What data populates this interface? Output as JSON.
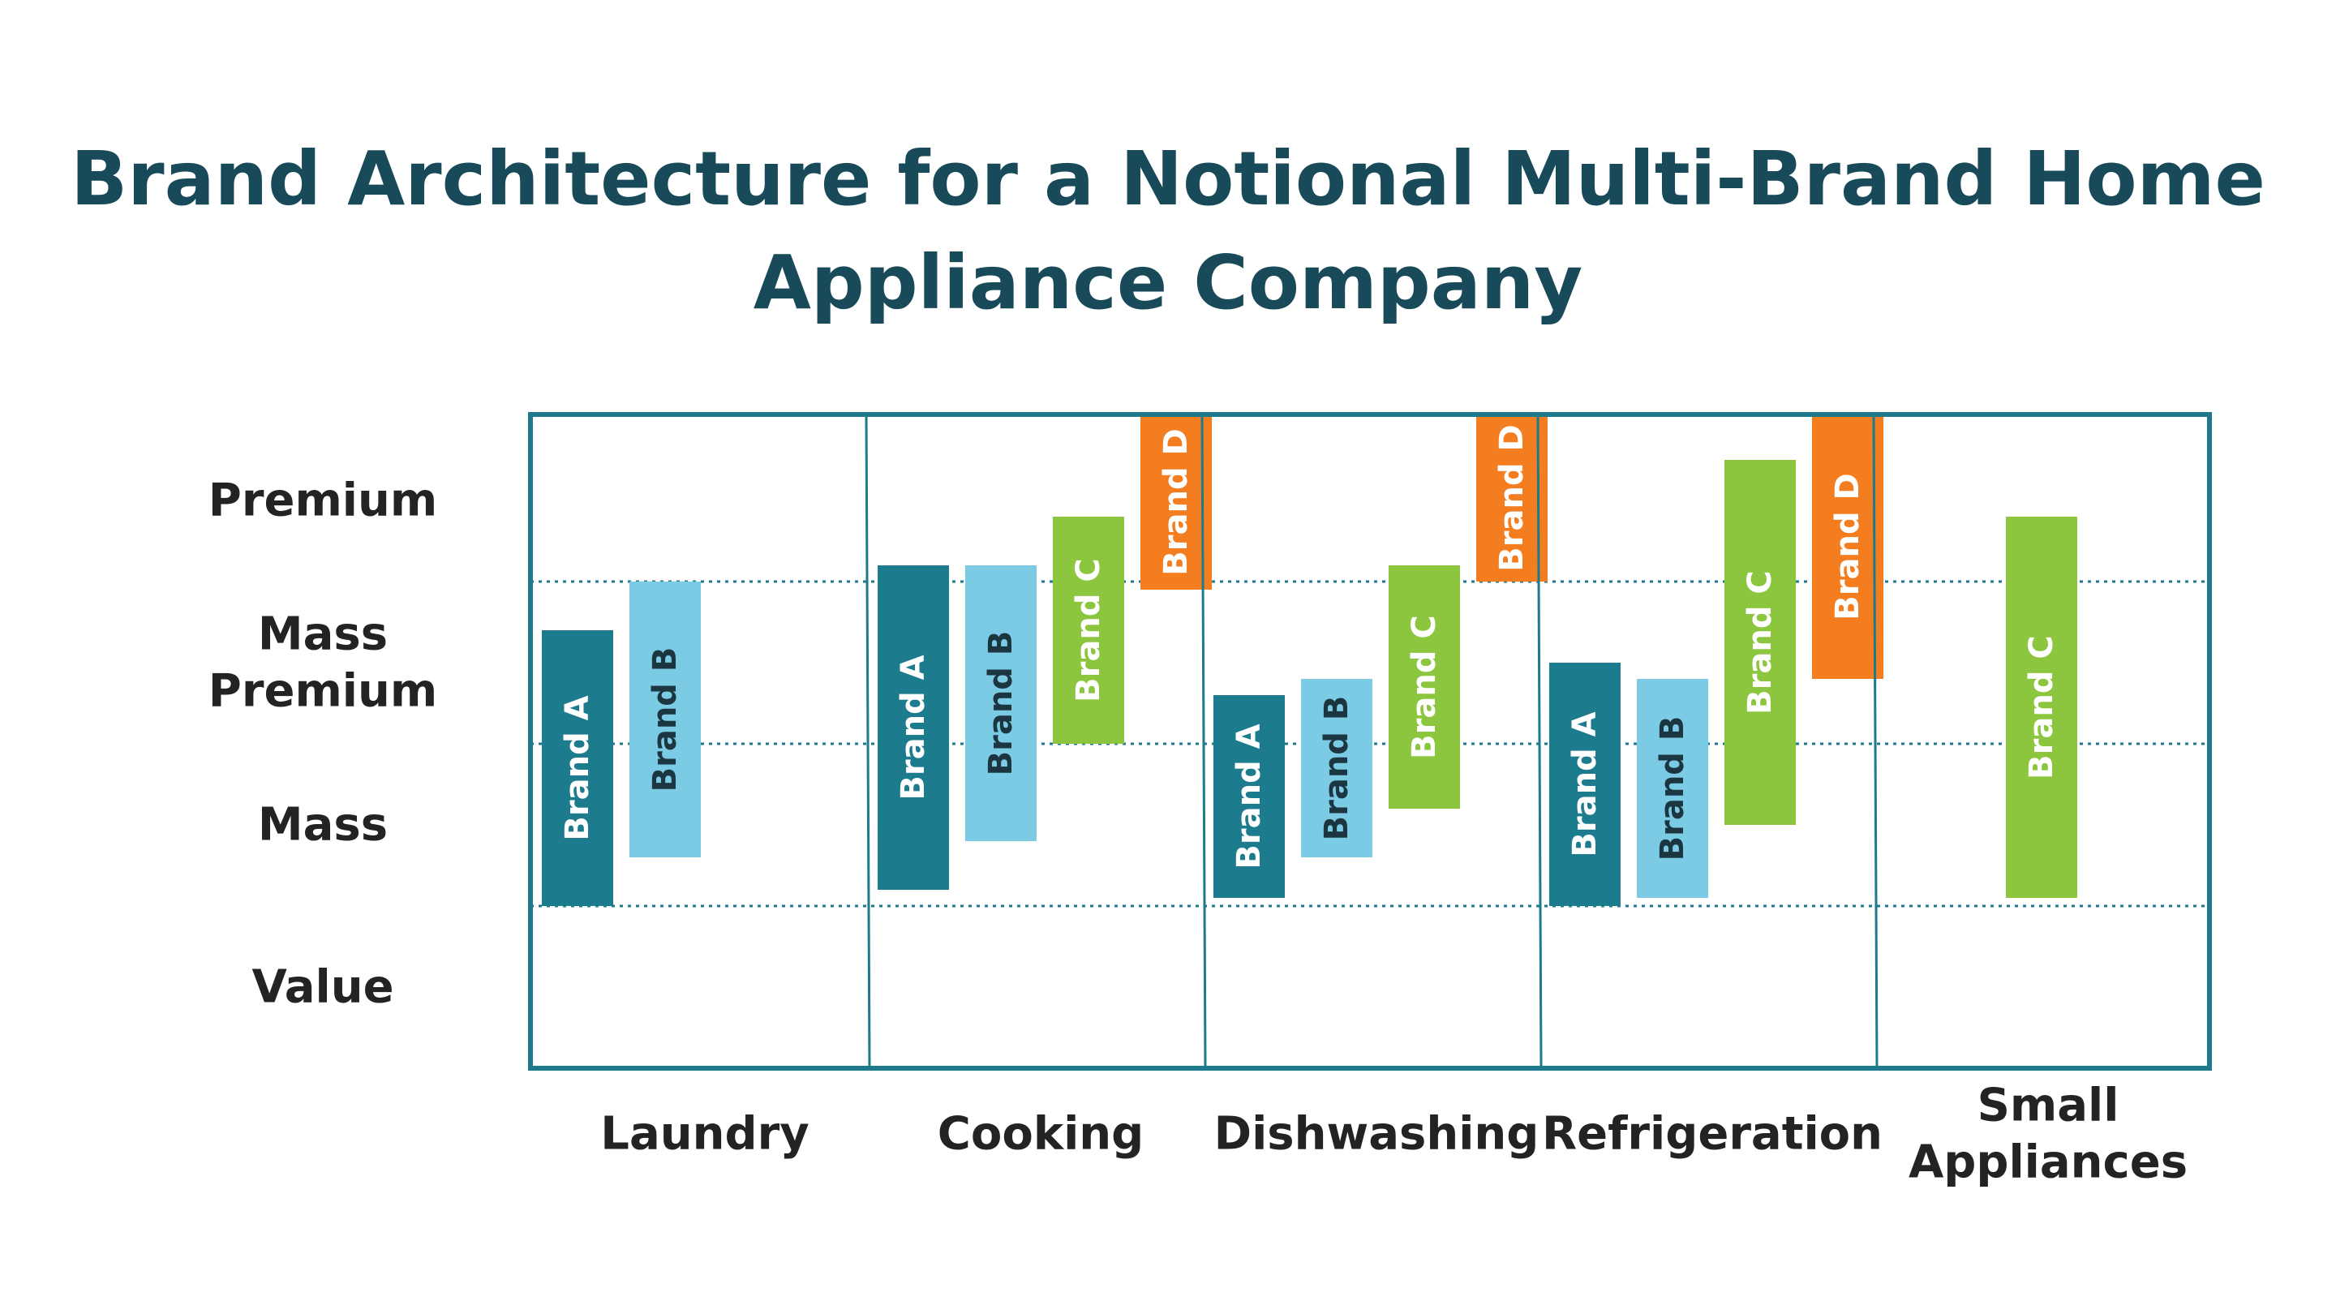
{
  "chart_data": {
    "type": "bar",
    "subtype": "floating-range",
    "title_lines": [
      "Brand Architecture for a Notional Multi-Brand Home",
      "Appliance Company"
    ],
    "y_tiers": [
      "Premium",
      "Mass Premium",
      "Mass",
      "Value"
    ],
    "y_tier_lines": [
      [
        "Premium"
      ],
      [
        "Mass",
        "Premium"
      ],
      [
        "Mass"
      ],
      [
        "Value"
      ]
    ],
    "categories": [
      "Laundry",
      "Cooking",
      "Dishwashing",
      "Refrigeration",
      "Small Appliances"
    ],
    "category_lines": [
      [
        "Laundry"
      ],
      [
        "Cooking"
      ],
      [
        "Dishwashing"
      ],
      [
        "Refrigeration"
      ],
      [
        "Small",
        "Appliances"
      ]
    ],
    "ylim": [
      0,
      4
    ],
    "gridlines": [
      1,
      2,
      3
    ],
    "grid": "dotted",
    "legend": "none",
    "series": [
      {
        "label": "Brand A",
        "color": "#1d7b8e",
        "text_color": "#ffffff",
        "ranges": [
          [
            1.0,
            2.7
          ],
          [
            1.1,
            3.1
          ],
          [
            1.05,
            2.3
          ],
          [
            1.0,
            2.5
          ],
          null
        ]
      },
      {
        "label": "Brand B",
        "color": "#7ccbe4",
        "text_color": "#1b3640",
        "ranges": [
          [
            1.3,
            3.0
          ],
          [
            1.4,
            3.1
          ],
          [
            1.3,
            2.4
          ],
          [
            1.05,
            2.4
          ],
          null
        ]
      },
      {
        "label": "Brand C",
        "color": "#8cc63f",
        "text_color": "#ffffff",
        "ranges": [
          [],
          [
            2.0,
            3.4
          ],
          [
            1.6,
            3.1
          ],
          [
            1.5,
            3.75
          ],
          [
            1.05,
            3.4
          ]
        ]
      },
      {
        "label": "Brand D",
        "color": "#f47d20",
        "text_color": "#ffffff",
        "ranges": [
          [],
          [
            2.95,
            4.1
          ],
          [
            3.0,
            4.1
          ],
          [
            2.4,
            4.1
          ],
          null
        ]
      }
    ],
    "frame_color": "#1e7a8a",
    "title_color": "#184a5a"
  }
}
